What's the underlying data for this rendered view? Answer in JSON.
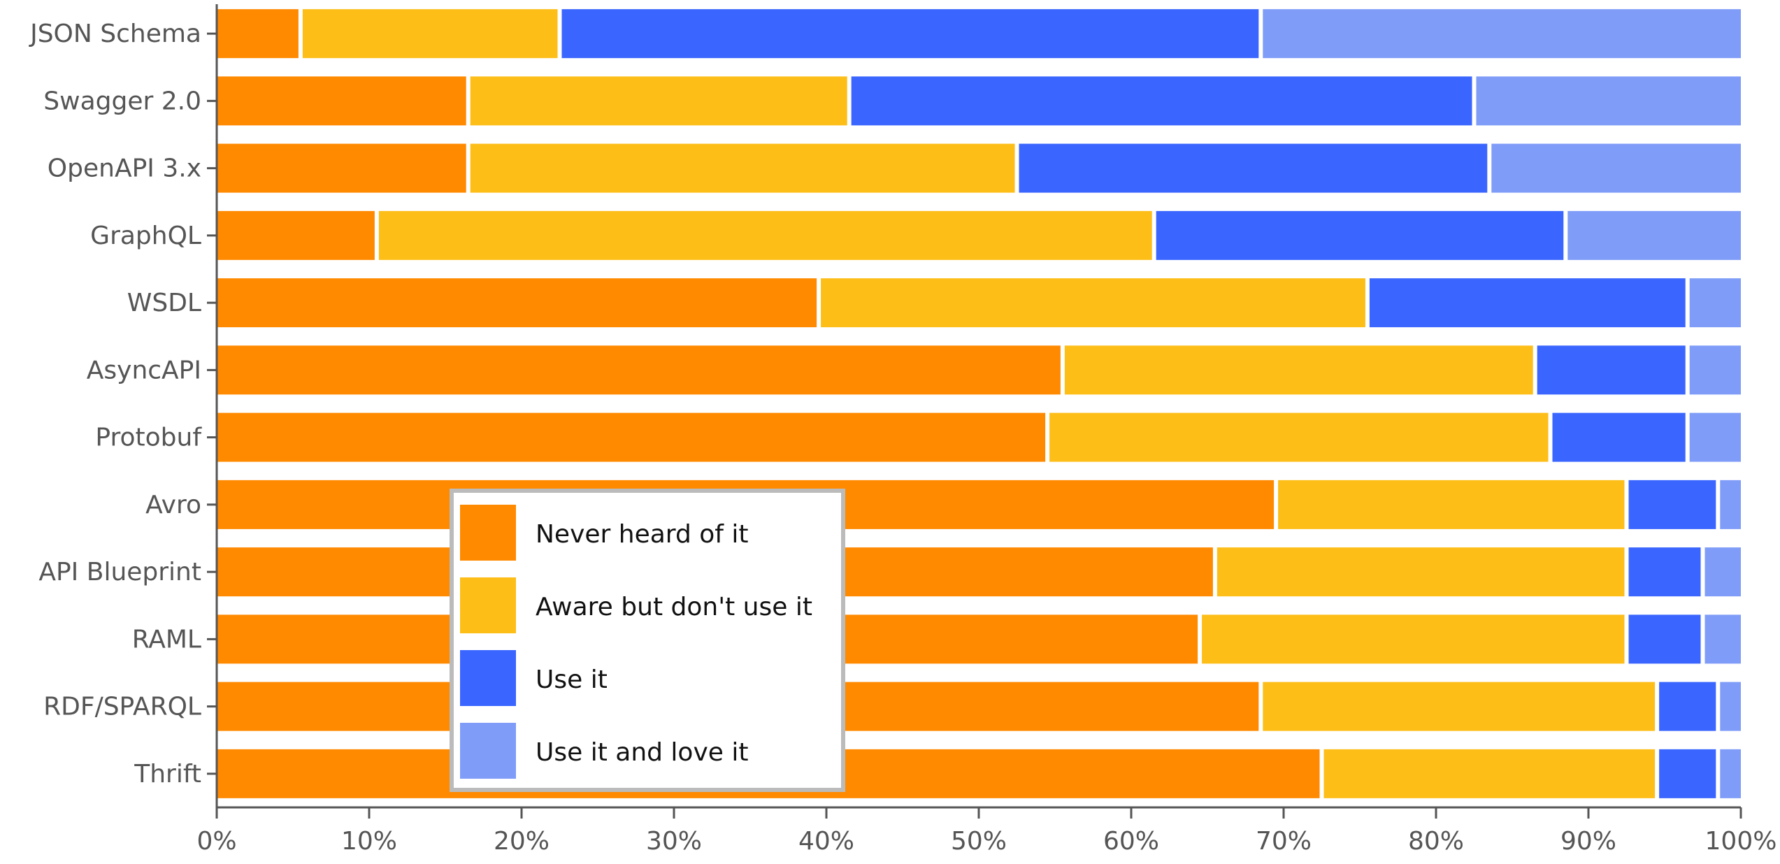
{
  "chart_data": {
    "type": "bar",
    "orientation": "horizontal",
    "stacked": true,
    "categories": [
      "JSON Schema",
      "Swagger 2.0",
      "OpenAPI 3.x",
      "GraphQL",
      "WSDL",
      "AsyncAPI",
      "Protobuf",
      "Avro",
      "API Blueprint",
      "RAML",
      "RDF/SPARQL",
      "Thrift"
    ],
    "series": [
      {
        "name": "Never heard of it",
        "color": "#FF8A00",
        "values": [
          5.5,
          16.5,
          16.5,
          10.5,
          39.5,
          55.5,
          54.5,
          69.5,
          65.5,
          64.5,
          68.5,
          72.5
        ]
      },
      {
        "name": "Aware but don't use it",
        "color": "#FDBE18",
        "values": [
          17,
          25,
          36,
          51,
          36,
          31,
          33,
          23,
          27,
          28,
          26,
          22
        ]
      },
      {
        "name": "Use it",
        "color": "#3A66FF",
        "values": [
          46,
          41,
          31,
          27,
          21,
          10,
          9,
          6,
          5,
          5,
          4,
          4
        ]
      },
      {
        "name": "Use it and love it",
        "color": "#7F9CF8",
        "values": [
          31.5,
          17.5,
          16.5,
          11.5,
          3.5,
          3.5,
          3.5,
          1.5,
          2.5,
          2.5,
          1.5,
          1.5
        ]
      }
    ],
    "x_ticks": [
      "0%",
      "10%",
      "20%",
      "30%",
      "40%",
      "50%",
      "60%",
      "70%",
      "80%",
      "90%",
      "100%"
    ],
    "xlim": [
      0,
      100
    ],
    "title": "",
    "xlabel": "",
    "ylabel": "",
    "grid": false,
    "legend_position": "center-left"
  }
}
